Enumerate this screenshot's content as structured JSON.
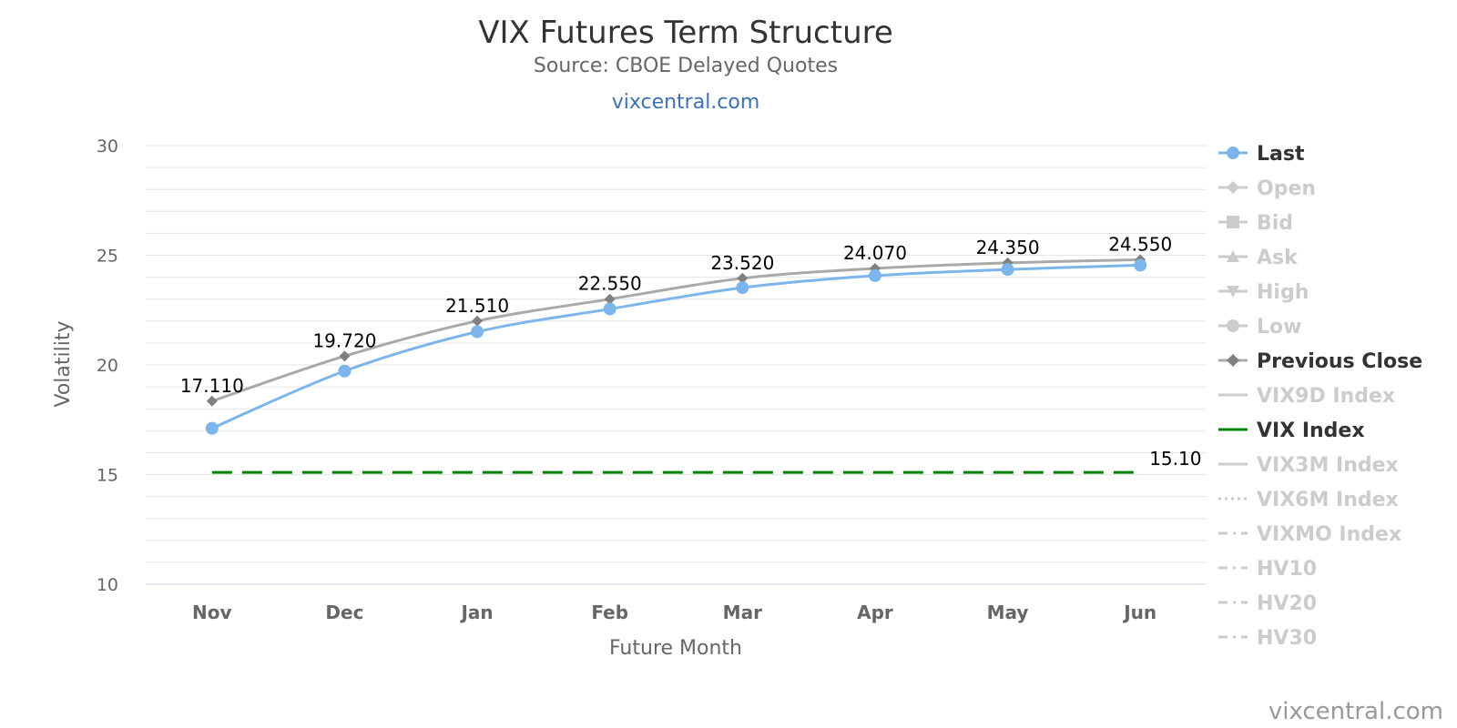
{
  "chart_data": {
    "type": "line",
    "title": "VIX Futures Term Structure",
    "subtitle": "Source: CBOE Delayed Quotes",
    "subtitle_link": "vixcentral.com",
    "xlabel": "Future Month",
    "ylabel": "Volatility",
    "categories": [
      "Nov",
      "Dec",
      "Jan",
      "Feb",
      "Mar",
      "Apr",
      "May",
      "Jun"
    ],
    "ylim": [
      10,
      30
    ],
    "yticks": [
      10,
      15,
      20,
      25,
      30
    ],
    "grid": true,
    "legend_position": "right",
    "series": [
      {
        "name": "Last",
        "visible": true,
        "color": "#7cb5ec",
        "marker": "circle",
        "values": [
          17.11,
          19.72,
          21.51,
          22.55,
          23.52,
          24.07,
          24.35,
          24.55
        ],
        "labels": [
          "17.110",
          "19.720",
          "21.510",
          "22.550",
          "23.520",
          "24.070",
          "24.350",
          "24.550"
        ]
      },
      {
        "name": "Open",
        "visible": false,
        "marker": "diamond"
      },
      {
        "name": "Bid",
        "visible": false,
        "marker": "square"
      },
      {
        "name": "Ask",
        "visible": false,
        "marker": "triangle"
      },
      {
        "name": "High",
        "visible": false,
        "marker": "triangle-down"
      },
      {
        "name": "Low",
        "visible": false,
        "marker": "circle"
      },
      {
        "name": "Previous Close",
        "visible": true,
        "color": "#a9a9a9",
        "marker": "diamond",
        "values": [
          18.35,
          20.4,
          22.0,
          23.0,
          23.95,
          24.4,
          24.65,
          24.8
        ]
      },
      {
        "name": "VIX9D Index",
        "visible": false,
        "marker": "none"
      },
      {
        "name": "VIX Index",
        "visible": true,
        "color": "#008000",
        "marker": "none",
        "dash": "dashed",
        "values": [
          15.1,
          15.1,
          15.1,
          15.1,
          15.1,
          15.1,
          15.1,
          15.1
        ],
        "end_label": "15.10"
      },
      {
        "name": "VIX3M Index",
        "visible": false,
        "marker": "none"
      },
      {
        "name": "VIX6M Index",
        "visible": false,
        "marker": "none",
        "dash": "dotted"
      },
      {
        "name": "VIXMO Index",
        "visible": false,
        "marker": "none",
        "dash": "dashdot"
      },
      {
        "name": "HV10",
        "visible": false,
        "marker": "none",
        "dash": "dashdot"
      },
      {
        "name": "HV20",
        "visible": false,
        "marker": "none",
        "dash": "dashdot"
      },
      {
        "name": "HV30",
        "visible": false,
        "marker": "none",
        "dash": "dashdot"
      }
    ],
    "credit": "vixcentral.com"
  },
  "colors": {
    "grid": "#e6e6e6",
    "axis_line": "#ccd6eb",
    "hidden_legend": "#cccccc",
    "visible_legend_text": "#333333"
  }
}
